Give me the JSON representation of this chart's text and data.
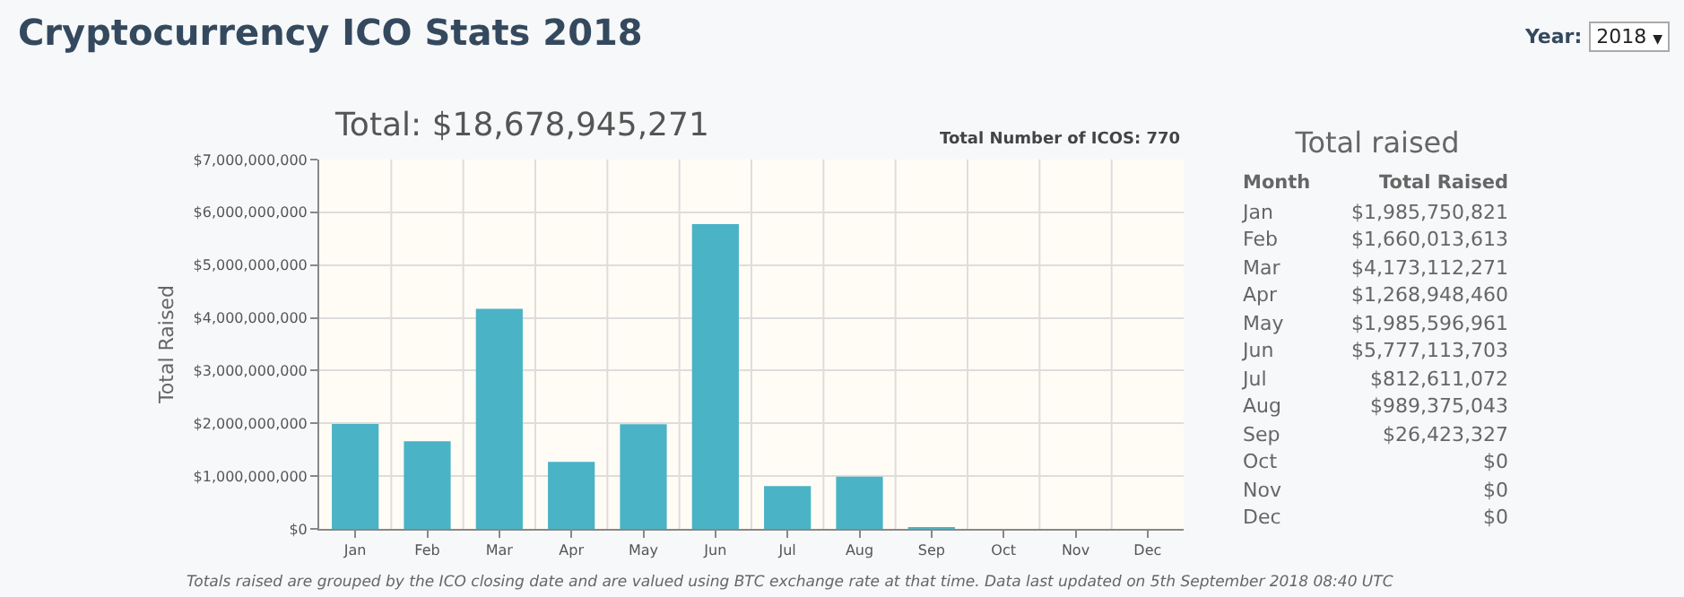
{
  "chart_data": {
    "type": "bar",
    "title": "Cryptocurrency ICO Stats 2018",
    "subtitle": "Total: $18,678,945,271",
    "ylabel": "Total Raised",
    "categories": [
      "Jan",
      "Feb",
      "Mar",
      "Apr",
      "May",
      "Jun",
      "Jul",
      "Aug",
      "Sep",
      "Oct",
      "Nov",
      "Dec"
    ],
    "values": [
      1985750821,
      1660013613,
      4173112271,
      1268948460,
      1985596961,
      5777113703,
      812611072,
      989375043,
      26423327,
      0,
      0,
      0
    ],
    "color": "#4ab3c6",
    "ylim": [
      0,
      7000000000
    ],
    "yticks": [
      {
        "value": 0,
        "label": "$0"
      },
      {
        "value": 1000000000,
        "label": "$1,000,000,000"
      },
      {
        "value": 2000000000,
        "label": "$2,000,000,000"
      },
      {
        "value": 3000000000,
        "label": "$3,000,000,000"
      },
      {
        "value": 4000000000,
        "label": "$4,000,000,000"
      },
      {
        "value": 5000000000,
        "label": "$5,000,000,000"
      },
      {
        "value": 6000000000,
        "label": "$6,000,000,000"
      },
      {
        "value": 7000000000,
        "label": "$7,000,000,000"
      }
    ],
    "grid": true,
    "annotations": [
      "Total Number of ICOS: 770",
      "Totals raised are grouped by the ICO closing date and are valued using BTC exchange rate at that time. Data last updated on 5th September 2018 08:40 UTC",
      "Total raised",
      "Month",
      "Total Raised",
      "Year:",
      "2018",
      "▼",
      "$1,985,750,821",
      "$1,660,013,613",
      "$4,173,112,271",
      "$1,268,948,460",
      "$1,985,596,961",
      "$5,777,113,703",
      "$812,611,072",
      "$989,375,043",
      "$26,423,327",
      "$0",
      "$0",
      "$0"
    ]
  }
}
